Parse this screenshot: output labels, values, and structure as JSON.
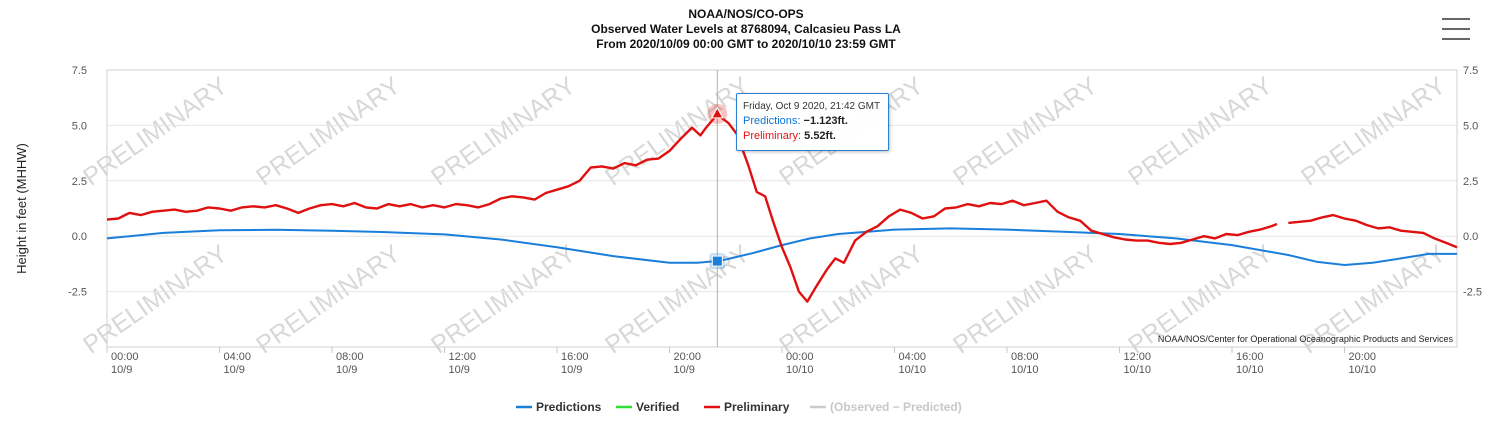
{
  "menu": {
    "icon": "hamburger-menu-icon"
  },
  "chart_data": {
    "type": "line",
    "title_lines": [
      "NOAA/NOS/CO-OPS",
      "Observed Water Levels at 8768094, Calcasieu Pass LA",
      "From 2020/10/09 00:00 GMT to 2020/10/10 23:59 GMT"
    ],
    "ylabel": "Height in feet (MHHW)",
    "ylim": [
      -5,
      7.5
    ],
    "y_ticks": [
      "7.5",
      "5.0",
      "2.5",
      "0.0",
      "-2.5"
    ],
    "y_tick_values": [
      7.5,
      5.0,
      2.5,
      0.0,
      -2.5
    ],
    "xlim_hours": [
      0,
      48
    ],
    "x_ticks": [
      {
        "hour": 0,
        "time": "00:00",
        "date": "10/9"
      },
      {
        "hour": 4,
        "time": "04:00",
        "date": "10/9"
      },
      {
        "hour": 8,
        "time": "08:00",
        "date": "10/9"
      },
      {
        "hour": 12,
        "time": "12:00",
        "date": "10/9"
      },
      {
        "hour": 16,
        "time": "16:00",
        "date": "10/9"
      },
      {
        "hour": 20,
        "time": "20:00",
        "date": "10/9"
      },
      {
        "hour": 24,
        "time": "00:00",
        "date": "10/10"
      },
      {
        "hour": 28,
        "time": "04:00",
        "date": "10/10"
      },
      {
        "hour": 32,
        "time": "08:00",
        "date": "10/10"
      },
      {
        "hour": 36,
        "time": "12:00",
        "date": "10/10"
      },
      {
        "hour": 40,
        "time": "16:00",
        "date": "10/10"
      },
      {
        "hour": 44,
        "time": "20:00",
        "date": "10/10"
      }
    ],
    "watermark_text": "PRELIMINARY",
    "credits": "NOAA/NOS/Center for Operational Oceanographic Products and Services",
    "series": [
      {
        "name": "Predictions",
        "color": "#1a7fd9",
        "points": [
          [
            0,
            -0.1
          ],
          [
            2,
            0.15
          ],
          [
            4,
            0.27
          ],
          [
            6,
            0.29
          ],
          [
            8,
            0.25
          ],
          [
            10,
            0.18
          ],
          [
            12,
            0.08
          ],
          [
            14,
            -0.15
          ],
          [
            16,
            -0.5
          ],
          [
            18,
            -0.9
          ],
          [
            20,
            -1.2
          ],
          [
            21,
            -1.2
          ],
          [
            21.7,
            -1.12
          ],
          [
            22,
            -1.05
          ],
          [
            23,
            -0.75
          ],
          [
            24,
            -0.4
          ],
          [
            25,
            -0.1
          ],
          [
            26,
            0.1
          ],
          [
            28,
            0.3
          ],
          [
            30,
            0.35
          ],
          [
            32,
            0.3
          ],
          [
            34,
            0.2
          ],
          [
            36,
            0.1
          ],
          [
            38,
            -0.1
          ],
          [
            40,
            -0.4
          ],
          [
            42,
            -0.85
          ],
          [
            43,
            -1.15
          ],
          [
            44,
            -1.3
          ],
          [
            45,
            -1.2
          ],
          [
            46,
            -1.0
          ],
          [
            47,
            -0.8
          ],
          [
            48,
            -0.8
          ]
        ]
      },
      {
        "name": "Verified",
        "color": "#33dd33",
        "points": []
      },
      {
        "name": "Preliminary",
        "color": "#e01010",
        "segments": [
          [
            [
              0,
              0.75
            ],
            [
              0.4,
              0.8
            ],
            [
              0.8,
              1.05
            ],
            [
              1.2,
              0.95
            ],
            [
              1.6,
              1.1
            ],
            [
              2.0,
              1.15
            ],
            [
              2.4,
              1.2
            ],
            [
              2.8,
              1.1
            ],
            [
              3.2,
              1.15
            ],
            [
              3.6,
              1.3
            ],
            [
              4.0,
              1.25
            ],
            [
              4.4,
              1.15
            ],
            [
              4.8,
              1.3
            ],
            [
              5.2,
              1.35
            ],
            [
              5.6,
              1.3
            ],
            [
              6.0,
              1.4
            ],
            [
              6.4,
              1.25
            ],
            [
              6.8,
              1.05
            ],
            [
              7.2,
              1.25
            ],
            [
              7.6,
              1.4
            ],
            [
              8.0,
              1.45
            ],
            [
              8.4,
              1.35
            ],
            [
              8.8,
              1.5
            ],
            [
              9.2,
              1.3
            ],
            [
              9.6,
              1.25
            ],
            [
              10.0,
              1.45
            ],
            [
              10.4,
              1.35
            ],
            [
              10.8,
              1.45
            ],
            [
              11.2,
              1.3
            ],
            [
              11.6,
              1.4
            ],
            [
              12.0,
              1.3
            ],
            [
              12.4,
              1.45
            ],
            [
              12.8,
              1.4
            ],
            [
              13.2,
              1.3
            ],
            [
              13.6,
              1.45
            ],
            [
              14.0,
              1.7
            ],
            [
              14.4,
              1.8
            ],
            [
              14.8,
              1.75
            ],
            [
              15.2,
              1.65
            ],
            [
              15.6,
              1.95
            ],
            [
              16.0,
              2.1
            ],
            [
              16.4,
              2.25
            ],
            [
              16.8,
              2.5
            ],
            [
              17.2,
              3.1
            ],
            [
              17.6,
              3.15
            ],
            [
              18.0,
              3.05
            ],
            [
              18.4,
              3.3
            ],
            [
              18.8,
              3.2
            ],
            [
              19.2,
              3.45
            ],
            [
              19.6,
              3.5
            ],
            [
              20.0,
              3.85
            ],
            [
              20.4,
              4.4
            ],
            [
              20.8,
              4.9
            ],
            [
              21.1,
              4.55
            ],
            [
              21.3,
              4.9
            ],
            [
              21.5,
              5.2
            ],
            [
              21.7,
              5.52
            ],
            [
              21.9,
              5.3
            ],
            [
              22.1,
              5.1
            ],
            [
              22.4,
              4.6
            ],
            [
              22.8,
              3.2
            ],
            [
              23.1,
              2.0
            ],
            [
              23.4,
              1.8
            ],
            [
              23.7,
              0.6
            ],
            [
              24.0,
              -0.5
            ],
            [
              24.3,
              -1.4
            ],
            [
              24.6,
              -2.5
            ],
            [
              24.9,
              -2.95
            ],
            [
              25.2,
              -2.3
            ],
            [
              25.6,
              -1.5
            ],
            [
              25.9,
              -1.0
            ],
            [
              26.2,
              -1.2
            ],
            [
              26.6,
              -0.2
            ],
            [
              27.0,
              0.2
            ],
            [
              27.4,
              0.45
            ],
            [
              27.8,
              0.9
            ],
            [
              28.2,
              1.2
            ],
            [
              28.6,
              1.05
            ],
            [
              29.0,
              0.8
            ],
            [
              29.4,
              0.9
            ],
            [
              29.8,
              1.25
            ],
            [
              30.2,
              1.3
            ],
            [
              30.6,
              1.45
            ],
            [
              31.0,
              1.35
            ],
            [
              31.4,
              1.5
            ],
            [
              31.8,
              1.45
            ],
            [
              32.2,
              1.6
            ],
            [
              32.6,
              1.4
            ],
            [
              33.0,
              1.5
            ],
            [
              33.4,
              1.6
            ],
            [
              33.8,
              1.1
            ],
            [
              34.2,
              0.85
            ],
            [
              34.6,
              0.7
            ],
            [
              35.0,
              0.25
            ],
            [
              35.4,
              0.1
            ],
            [
              35.8,
              -0.05
            ],
            [
              36.2,
              -0.15
            ],
            [
              36.6,
              -0.2
            ],
            [
              37.0,
              -0.2
            ],
            [
              37.4,
              -0.3
            ],
            [
              37.8,
              -0.35
            ],
            [
              38.2,
              -0.3
            ],
            [
              38.6,
              -0.15
            ],
            [
              39.0,
              0.0
            ],
            [
              39.4,
              -0.1
            ],
            [
              39.8,
              0.1
            ],
            [
              40.2,
              0.05
            ],
            [
              40.6,
              0.2
            ],
            [
              41.0,
              0.3
            ],
            [
              41.4,
              0.45
            ],
            [
              41.6,
              0.55
            ]
          ],
          [
            [
              42.0,
              0.6
            ],
            [
              42.4,
              0.65
            ],
            [
              42.8,
              0.7
            ],
            [
              43.2,
              0.85
            ],
            [
              43.6,
              0.95
            ],
            [
              44.0,
              0.8
            ],
            [
              44.4,
              0.7
            ],
            [
              44.8,
              0.5
            ],
            [
              45.2,
              0.35
            ],
            [
              45.6,
              0.4
            ],
            [
              46.0,
              0.25
            ],
            [
              46.4,
              0.2
            ],
            [
              46.8,
              0.15
            ],
            [
              47.2,
              -0.1
            ],
            [
              47.6,
              -0.3
            ],
            [
              48.0,
              -0.5
            ]
          ]
        ]
      },
      {
        "name": "(Observed - Predicted)",
        "color": "#cccccc",
        "points": []
      }
    ],
    "hover": {
      "hour": 21.7,
      "prediction": -1.123,
      "preliminary": 5.52
    }
  },
  "tooltip": {
    "date": "Friday, Oct 9 2020, 21:42 GMT",
    "pred_label": "Predictions:",
    "pred_value": "−1.123ft.",
    "prel_label": "Preliminary:",
    "prel_value": "5.52ft."
  },
  "legend": [
    {
      "label": "Predictions",
      "color": "#1a7fd9"
    },
    {
      "label": "Verified",
      "color": "#33dd33"
    },
    {
      "label": "Preliminary",
      "color": "#e01010"
    },
    {
      "label": "(Observed − Predicted)",
      "color": "#cccccc",
      "disabled": true
    }
  ]
}
